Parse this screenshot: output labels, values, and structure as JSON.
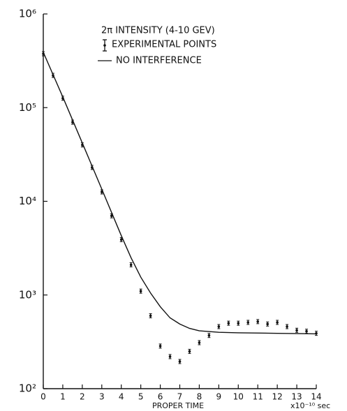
{
  "chart_data": {
    "type": "scatter",
    "title": "2π INTENSITY (4-10 GEV)",
    "xlabel": "PROPER TIME",
    "xunit": "x10⁻¹⁰ sec",
    "log_y": true,
    "xlim": [
      0,
      14
    ],
    "ylim": [
      100,
      1000000
    ],
    "xticks": [
      0,
      1,
      2,
      3,
      4,
      5,
      6,
      7,
      8,
      9,
      10,
      11,
      12,
      13,
      14
    ],
    "yticks": [
      {
        "value": 100,
        "label": "10²"
      },
      {
        "value": 1000,
        "label": "10³"
      },
      {
        "value": 10000,
        "label": "10⁴"
      },
      {
        "value": 100000,
        "label": "10⁵"
      },
      {
        "value": 1000000,
        "label": "10⁶"
      }
    ],
    "series": [
      {
        "name": "EXPERIMENTAL POINTS",
        "type": "scatter",
        "color": "#111111",
        "x": [
          0,
          0.5,
          1,
          1.5,
          2,
          2.5,
          3,
          3.5,
          4,
          4.5,
          5,
          5.5,
          6,
          6.5,
          7,
          7.5,
          8,
          8.5,
          9,
          9.5,
          10,
          10.5,
          11,
          11.5,
          12,
          12.5,
          13,
          13.5,
          14
        ],
        "values": [
          376000,
          221000,
          126000,
          70000,
          40000,
          23000,
          12600,
          7000,
          3900,
          2100,
          1100,
          600,
          285,
          220,
          195,
          250,
          310,
          370,
          460,
          500,
          500,
          510,
          520,
          490,
          510,
          460,
          420,
          410,
          390
        ]
      },
      {
        "name": "NO INTERFERENCE",
        "type": "line",
        "color": "#111111",
        "x": [
          0,
          1,
          2,
          3,
          4,
          4.5,
          5,
          5.5,
          6,
          6.5,
          7,
          7.5,
          8,
          9,
          10,
          12,
          14
        ],
        "values": [
          390000,
          130000,
          42000,
          13500,
          4300,
          2500,
          1550,
          1050,
          750,
          570,
          490,
          440,
          415,
          400,
          395,
          390,
          385
        ]
      }
    ]
  }
}
